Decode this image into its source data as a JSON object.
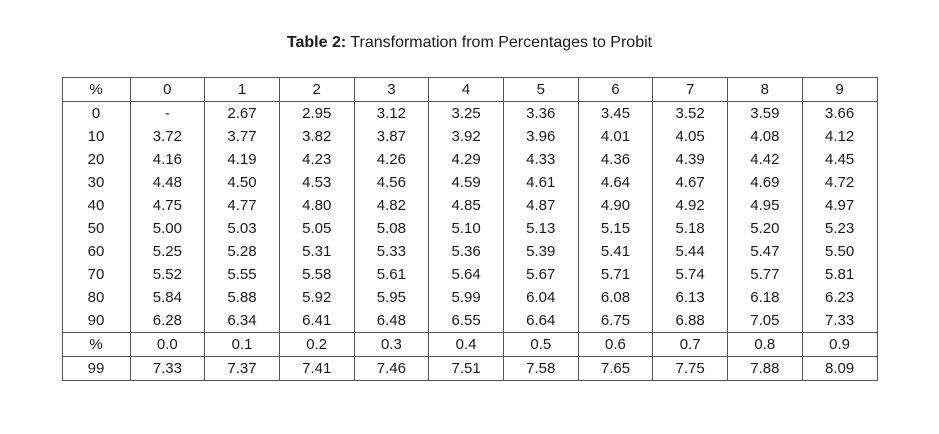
{
  "caption": {
    "prefix": "Table 2:",
    "text": " Transformation from Percentages to Probit"
  },
  "chart_data": {
    "type": "table",
    "title": "Table 2: Transformation from Percentages to Probit",
    "header": [
      "%",
      "0",
      "1",
      "2",
      "3",
      "4",
      "5",
      "6",
      "7",
      "8",
      "9"
    ],
    "rows": [
      [
        "0",
        "-",
        "2.67",
        "2.95",
        "3.12",
        "3.25",
        "3.36",
        "3.45",
        "3.52",
        "3.59",
        "3.66"
      ],
      [
        "10",
        "3.72",
        "3.77",
        "3.82",
        "3.87",
        "3.92",
        "3.96",
        "4.01",
        "4.05",
        "4.08",
        "4.12"
      ],
      [
        "20",
        "4.16",
        "4.19",
        "4.23",
        "4.26",
        "4.29",
        "4.33",
        "4.36",
        "4.39",
        "4.42",
        "4.45"
      ],
      [
        "30",
        "4.48",
        "4.50",
        "4.53",
        "4.56",
        "4.59",
        "4.61",
        "4.64",
        "4.67",
        "4.69",
        "4.72"
      ],
      [
        "40",
        "4.75",
        "4.77",
        "4.80",
        "4.82",
        "4.85",
        "4.87",
        "4.90",
        "4.92",
        "4.95",
        "4.97"
      ],
      [
        "50",
        "5.00",
        "5.03",
        "5.05",
        "5.08",
        "5.10",
        "5.13",
        "5.15",
        "5.18",
        "5.20",
        "5.23"
      ],
      [
        "60",
        "5.25",
        "5.28",
        "5.31",
        "5.33",
        "5.36",
        "5.39",
        "5.41",
        "5.44",
        "5.47",
        "5.50"
      ],
      [
        "70",
        "5.52",
        "5.55",
        "5.58",
        "5.61",
        "5.64",
        "5.67",
        "5.71",
        "5.74",
        "5.77",
        "5.81"
      ],
      [
        "80",
        "5.84",
        "5.88",
        "5.92",
        "5.95",
        "5.99",
        "6.04",
        "6.08",
        "6.13",
        "6.18",
        "6.23"
      ],
      [
        "90",
        "6.28",
        "6.34",
        "6.41",
        "6.48",
        "6.55",
        "6.64",
        "6.75",
        "6.88",
        "7.05",
        "7.33"
      ]
    ],
    "subheader": [
      "%",
      "0.0",
      "0.1",
      "0.2",
      "0.3",
      "0.4",
      "0.5",
      "0.6",
      "0.7",
      "0.8",
      "0.9"
    ],
    "subrows": [
      [
        "99",
        "7.33",
        "7.37",
        "7.41",
        "7.46",
        "7.51",
        "7.58",
        "7.65",
        "7.75",
        "7.88",
        "8.09"
      ]
    ]
  }
}
